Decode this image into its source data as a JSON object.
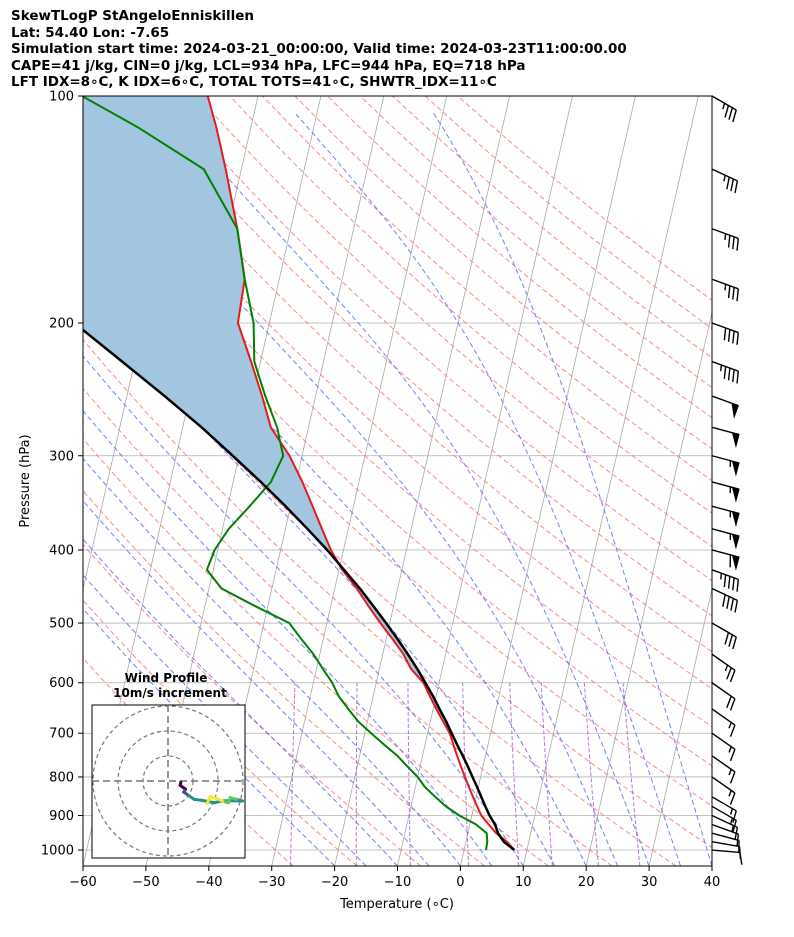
{
  "header": {
    "title": "SkewTLogP StAngeloEnniskillen",
    "location": "Lat: 54.40   Lon: -7.65",
    "times": "Simulation start time: 2024-03-21_00:00:00, Valid time: 2024-03-23T11:00:00.00",
    "cape_line": "CAPE=41 j/kg, CIN=0 j/kg, LCL=934 hPa, LFC=944 hPa, EQ=718 hPa",
    "index_line": "LFT IDX=8∘C, K IDX=6∘C, TOTAL TOTS=41∘C, SHWTR_IDX=11∘C"
  },
  "chart_data": {
    "type": "line",
    "subtype": "skew-t log-p",
    "xlabel": "Temperature (∘C)",
    "ylabel": "Pressure (hPa)",
    "xlim": [
      -60,
      40
    ],
    "ylim": [
      1050,
      100
    ],
    "yscale": "log",
    "x_ticks": [
      -60,
      -50,
      -40,
      -30,
      -20,
      -10,
      0,
      10,
      20,
      30,
      40
    ],
    "y_ticks": [
      100,
      200,
      300,
      400,
      500,
      600,
      700,
      800,
      900,
      1000
    ],
    "grid": true,
    "colors": {
      "temperature": "#e41a1c",
      "dewpoint": "#008000",
      "parcel": "#000000",
      "cape_fill": "#a3c6e0",
      "dry_adiabats": "#ff6a6a",
      "moist_adiabats": "#5060ff",
      "mixing_ratio": "#a040c0",
      "isotherms": "#a9a9a9"
    },
    "series": [
      {
        "points": [
          [
            8,
            1000
          ],
          [
            6.5,
            975
          ],
          [
            4.5,
            950
          ],
          [
            3,
            925
          ],
          [
            1.5,
            900
          ],
          [
            0.5,
            875
          ],
          [
            -0.5,
            850
          ],
          [
            -1.5,
            825
          ],
          [
            -2.5,
            800
          ],
          [
            -3.5,
            775
          ],
          [
            -4.5,
            750
          ],
          [
            -5.5,
            725
          ],
          [
            -6.5,
            700
          ],
          [
            -8,
            675
          ],
          [
            -9.5,
            650
          ],
          [
            -11,
            625
          ],
          [
            -12.5,
            600
          ],
          [
            -15,
            575
          ],
          [
            -16.7,
            550
          ],
          [
            -19,
            525
          ],
          [
            -21.5,
            500
          ],
          [
            -24,
            475
          ],
          [
            -26.5,
            450
          ],
          [
            -29.5,
            425
          ],
          [
            -32,
            400
          ],
          [
            -34.2,
            375
          ],
          [
            -36.5,
            350
          ],
          [
            -39,
            325
          ],
          [
            -42,
            300
          ],
          [
            -46,
            275
          ],
          [
            -48.5,
            250
          ],
          [
            -51.5,
            225
          ],
          [
            -55,
            200
          ],
          [
            -55.5,
            175
          ],
          [
            -58.5,
            150
          ],
          [
            -62.5,
            125
          ],
          [
            -65.5,
            110
          ],
          [
            -68,
            100
          ]
        ]
      },
      {
        "points": [
          [
            3.5,
            1000
          ],
          [
            3.4,
            975
          ],
          [
            3,
            950
          ],
          [
            1,
            925
          ],
          [
            -2,
            900
          ],
          [
            -4.5,
            875
          ],
          [
            -6.5,
            850
          ],
          [
            -8.5,
            825
          ],
          [
            -10,
            800
          ],
          [
            -12,
            775
          ],
          [
            -14,
            750
          ],
          [
            -16.5,
            725
          ],
          [
            -19,
            700
          ],
          [
            -21.5,
            675
          ],
          [
            -23.5,
            650
          ],
          [
            -25.5,
            625
          ],
          [
            -27,
            600
          ],
          [
            -29,
            575
          ],
          [
            -31,
            550
          ],
          [
            -33.5,
            525
          ],
          [
            -36,
            500
          ],
          [
            -42,
            475
          ],
          [
            -48,
            450
          ],
          [
            -51,
            425
          ],
          [
            -50.5,
            400
          ],
          [
            -49,
            375
          ],
          [
            -46.5,
            350
          ],
          [
            -44,
            325
          ],
          [
            -43,
            300
          ],
          [
            -45,
            275
          ],
          [
            -48,
            250
          ],
          [
            -51,
            225
          ],
          [
            -52.5,
            200
          ],
          [
            -55.5,
            175
          ],
          [
            -58.5,
            150
          ],
          [
            -66,
            125
          ],
          [
            -78,
            110
          ],
          [
            -88,
            100
          ]
        ]
      },
      {
        "points": [
          [
            8,
            1000
          ],
          [
            6,
            975
          ],
          [
            4.8,
            950
          ],
          [
            4,
            925
          ],
          [
            2.8,
            900
          ],
          [
            1.8,
            875
          ],
          [
            0.8,
            850
          ],
          [
            -0.2,
            825
          ],
          [
            -1.3,
            800
          ],
          [
            -2.4,
            775
          ],
          [
            -3.6,
            750
          ],
          [
            -4.9,
            725
          ],
          [
            -6.2,
            700
          ],
          [
            -7.5,
            675
          ],
          [
            -9,
            650
          ],
          [
            -10.5,
            625
          ],
          [
            -12.2,
            600
          ],
          [
            -14,
            575
          ],
          [
            -16,
            550
          ],
          [
            -18.2,
            525
          ],
          [
            -20.6,
            500
          ],
          [
            -23.2,
            475
          ],
          [
            -26,
            450
          ],
          [
            -29.2,
            425
          ],
          [
            -32.6,
            400
          ],
          [
            -36.5,
            375
          ],
          [
            -40.8,
            350
          ],
          [
            -45.6,
            325
          ],
          [
            -51,
            300
          ],
          [
            -57,
            275
          ],
          [
            -64,
            250
          ],
          [
            -72,
            225
          ],
          [
            -81,
            200
          ],
          [
            -90,
            180
          ],
          [
            -100,
            162
          ],
          [
            -108,
            150
          ],
          [
            -115,
            125
          ],
          [
            -119,
            110
          ],
          [
            -121,
            100
          ]
        ]
      }
    ]
  },
  "wind_barbs": {
    "levels": [
      100,
      125,
      150,
      175,
      200,
      225,
      250,
      275,
      300,
      325,
      350,
      375,
      400,
      425,
      450,
      500,
      550,
      600,
      650,
      700,
      750,
      800,
      850,
      875,
      900,
      925,
      950,
      975,
      1000
    ],
    "speed_kt": [
      35,
      35,
      35,
      35,
      40,
      45,
      50,
      50,
      55,
      55,
      55,
      55,
      60,
      45,
      40,
      30,
      25,
      20,
      15,
      15,
      15,
      15,
      15,
      15,
      15,
      10,
      10,
      10,
      10
    ],
    "dir_deg": [
      300,
      295,
      290,
      290,
      290,
      290,
      290,
      285,
      285,
      285,
      285,
      285,
      285,
      290,
      295,
      300,
      305,
      305,
      305,
      305,
      305,
      305,
      300,
      300,
      295,
      290,
      285,
      280,
      275
    ]
  },
  "hodograph": {
    "title": "Wind Profile",
    "subtitle": "10m/s increment",
    "colormap": "viridis"
  }
}
